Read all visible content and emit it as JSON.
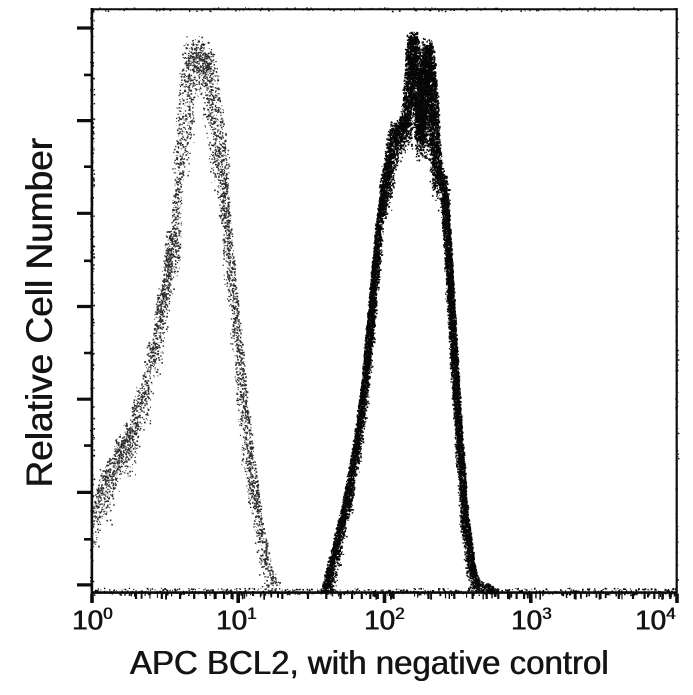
{
  "figure": {
    "background": "#ffffff",
    "frame_color": "#0d0d0d"
  },
  "chart_data": {
    "type": "line",
    "subtype": "flow-cytometry histogram overlay (scanned, stippled)",
    "title": "",
    "xlabel": "APC BCL2, with negative control",
    "ylabel": "Relative Cell Number",
    "x_scale": "log10",
    "x_range": [
      1,
      10000
    ],
    "ylim_percent": [
      0,
      100
    ],
    "grid": false,
    "legend": "none",
    "x_ticks": [
      {
        "base": "10",
        "exp": "0"
      },
      {
        "base": "10",
        "exp": "1"
      },
      {
        "base": "10",
        "exp": "2"
      },
      {
        "base": "10",
        "exp": "3"
      },
      {
        "base": "10",
        "exp": "4"
      }
    ],
    "x_minor_ticks": [
      2,
      3,
      4,
      5,
      6,
      7,
      8,
      9
    ],
    "y_axis_ticks": {
      "long_count": 7,
      "short_count": 6,
      "labels_visible": false
    },
    "series": [
      {
        "name": "negative control",
        "render": "sparse gray stipple outline",
        "color": "#2d2d2d",
        "peak_x": 5,
        "peak_percent": 95,
        "points": [
          [
            1.05,
            12.5
          ],
          [
            1.12,
            17.3
          ],
          [
            1.19,
            21
          ],
          [
            1.27,
            18.6
          ],
          [
            1.35,
            23.1
          ],
          [
            1.44,
            21.7
          ],
          [
            1.53,
            26.5
          ],
          [
            1.63,
            24.4
          ],
          [
            1.74,
            28.9
          ],
          [
            1.85,
            26.8
          ],
          [
            1.97,
            31.6
          ],
          [
            2.1,
            34.7
          ],
          [
            2.23,
            33.3
          ],
          [
            2.38,
            38.5
          ],
          [
            2.53,
            42.9
          ],
          [
            2.66,
            41.2
          ],
          [
            2.83,
            47
          ],
          [
            2.96,
            51.8
          ],
          [
            3.1,
            50.1
          ],
          [
            3.26,
            56.6
          ],
          [
            3.41,
            61.7
          ],
          [
            3.58,
            59.7
          ],
          [
            3.75,
            66.3
          ],
          [
            3.93,
            72.3
          ],
          [
            4.12,
            77.4
          ],
          [
            4.33,
            84.3
          ],
          [
            4.53,
            90.8
          ],
          [
            4.75,
            94.2
          ],
          [
            4.98,
            92
          ],
          [
            5.24,
            94.9
          ],
          [
            5.48,
            91.1
          ],
          [
            5.76,
            93.5
          ],
          [
            6.02,
            89.4
          ],
          [
            6.33,
            92.5
          ],
          [
            6.62,
            86.8
          ],
          [
            6.94,
            82.6
          ],
          [
            7.28,
            78.3
          ],
          [
            7.62,
            74
          ],
          [
            8,
            68.9
          ],
          [
            8.37,
            63.4
          ],
          [
            8.78,
            57.8
          ],
          [
            9.2,
            52.1
          ],
          [
            9.65,
            47
          ],
          [
            10.1,
            41.9
          ],
          [
            10.6,
            36.8
          ],
          [
            11.1,
            31.6
          ],
          [
            11.65,
            27
          ],
          [
            12.2,
            22.7
          ],
          [
            12.8,
            18.8
          ],
          [
            13.4,
            15
          ],
          [
            14.05,
            11.6
          ],
          [
            14.95,
            8.2
          ],
          [
            15.9,
            5.3
          ],
          [
            17,
            3.1
          ],
          [
            18.4,
            1.4
          ]
        ]
      },
      {
        "name": "APC BCL2",
        "render": "dense black stipple outline",
        "color": "#060606",
        "peak_x": 153,
        "peak_percent": 95.6,
        "points": [
          [
            37.9,
            0.5
          ],
          [
            41,
            3.6
          ],
          [
            44.4,
            7
          ],
          [
            47.9,
            10.4
          ],
          [
            52.1,
            14.2
          ],
          [
            55.5,
            17.6
          ],
          [
            59.2,
            21.4
          ],
          [
            62.9,
            25.1
          ],
          [
            66,
            28.9
          ],
          [
            69.2,
            32.6
          ],
          [
            72.5,
            36.4
          ],
          [
            74.8,
            40.2
          ],
          [
            77.2,
            43.9
          ],
          [
            79.6,
            47.7
          ],
          [
            82.1,
            51.5
          ],
          [
            84.7,
            55.2
          ],
          [
            87.4,
            59
          ],
          [
            90.1,
            62.7
          ],
          [
            94.5,
            66.5
          ],
          [
            98.9,
            69.6
          ],
          [
            103.5,
            72.6
          ],
          [
            108.3,
            75.7
          ],
          [
            113.3,
            78.3
          ],
          [
            118.4,
            80.2
          ],
          [
            123.6,
            79.5
          ],
          [
            129.5,
            80.9
          ],
          [
            135.2,
            79.8
          ],
          [
            139.4,
            80.5
          ],
          [
            143.9,
            85.1
          ],
          [
            148.5,
            90.8
          ],
          [
            153.2,
            95.6
          ],
          [
            158.2,
            94.2
          ],
          [
            163.1,
            92
          ],
          [
            170,
            85.1
          ],
          [
            177,
            78.6
          ],
          [
            182,
            85
          ],
          [
            188,
            91.1
          ],
          [
            194,
            94.2
          ],
          [
            200,
            92.8
          ],
          [
            206,
            90.1
          ],
          [
            213,
            83.4
          ],
          [
            220,
            77.1
          ],
          [
            227,
            73.2
          ],
          [
            238,
            72
          ],
          [
            249,
            70.9
          ],
          [
            259,
            68
          ],
          [
            266,
            62.9
          ],
          [
            274,
            57.8
          ],
          [
            281,
            52.6
          ],
          [
            289,
            47.5
          ],
          [
            297,
            42.4
          ],
          [
            305,
            37.3
          ],
          [
            313,
            32.6
          ],
          [
            321,
            28.2
          ],
          [
            330,
            24.1
          ],
          [
            339,
            20.3
          ],
          [
            346,
            16.9
          ],
          [
            354,
            13.8
          ],
          [
            368,
            10.8
          ],
          [
            381,
            7.7
          ],
          [
            394,
            5.3
          ],
          [
            410,
            3.4
          ],
          [
            425,
            1.9
          ],
          [
            526,
            0.9
          ],
          [
            575,
            0.3
          ]
        ]
      }
    ]
  }
}
